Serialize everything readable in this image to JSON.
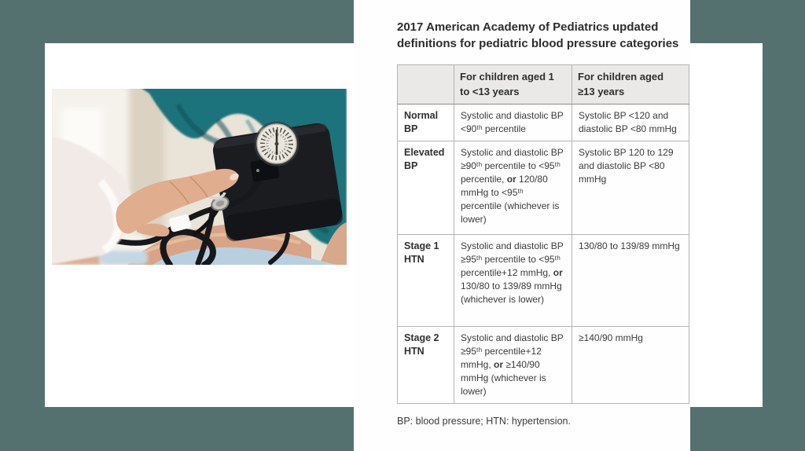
{
  "slide": {
    "title": "2017 American Academy of Pediatrics updated definitions for pediatric blood pressure categories",
    "footnote": "BP: blood pressure; HTN: hypertension."
  },
  "table": {
    "columns": [
      "",
      "For children aged 1 to <13 years",
      "For children aged ≥13 years"
    ],
    "rows": [
      {
        "label": "Normal BP",
        "aged_1_to_13": [
          {
            "t": "Systolic and diastolic BP <90ᵗʰ percentile"
          }
        ],
        "aged_13_plus": "Systolic BP <120 and diastolic BP <80 mmHg"
      },
      {
        "label": "Elevated BP",
        "aged_1_to_13": [
          {
            "t": "Systolic and diastolic BP ≥90ᵗʰ percentile to <95ᵗʰ percentile, "
          },
          {
            "t": "or",
            "b": true
          },
          {
            "t": " 120/80 mmHg to <95ᵗʰ percentile (whichever is lower)"
          }
        ],
        "aged_13_plus": "Systolic BP 120 to 129 and diastolic BP <80 mmHg"
      },
      {
        "label": "Stage 1 HTN",
        "aged_1_to_13": [
          {
            "t": "Systolic and diastolic BP ≥95ᵗʰ percentile to <95ᵗʰ percentile+12 mmHg, "
          },
          {
            "t": "or",
            "b": true
          },
          {
            "t": " 130/80 to 139/89 mmHg (whichever is lower)"
          }
        ],
        "aged_13_plus": "130/80 to 139/89 mmHg"
      },
      {
        "label": "Stage 2 HTN",
        "aged_1_to_13": [
          {
            "t": "Systolic and diastolic BP ≥95ᵗʰ percentile+12 mmHg, "
          },
          {
            "t": "or",
            "b": true
          },
          {
            "t": " ≥140/90 mmHg (whichever is lower)"
          }
        ],
        "aged_13_plus": "≥140/90 mmHg"
      }
    ]
  },
  "colors": {
    "background_teal": "#547170",
    "card_white": "#ffffff",
    "table_header_bg": "#ebe9e7",
    "table_border": "#b4b4b4",
    "text_dark": "#3b3b3b",
    "shirt_teal": "#1e737b",
    "cuff_black": "#1b1c20",
    "skin_tone": "#d7a488",
    "cloth_blue": "#b9cfdf",
    "gauge_face": "#e9e6dd"
  }
}
